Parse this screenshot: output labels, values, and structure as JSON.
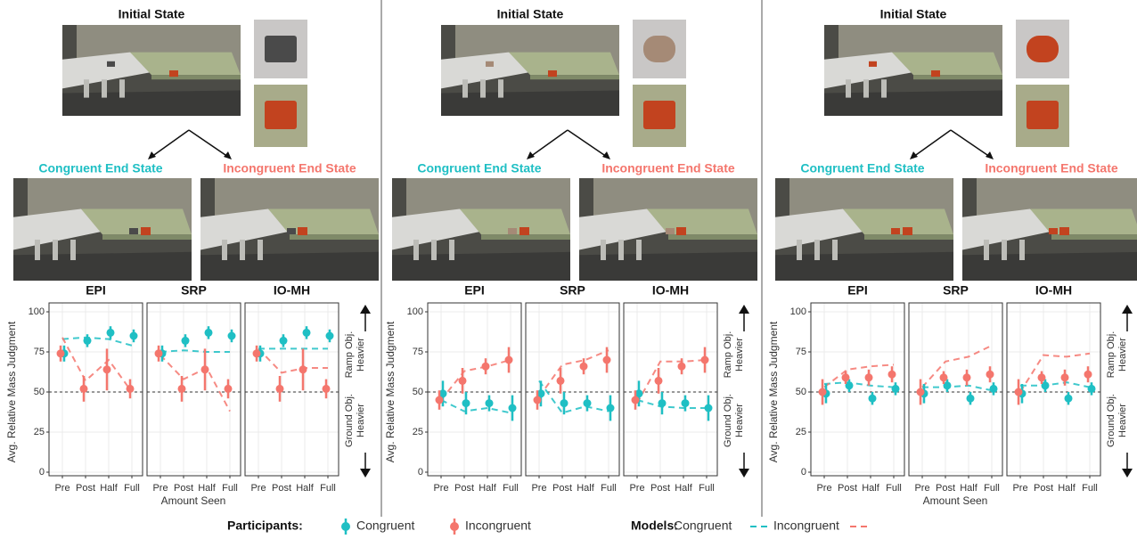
{
  "panels": [
    {
      "initial_label": "Initial State",
      "congruent_label": "Congruent End State",
      "incongruent_label": "Incongruent End State",
      "y_label": "Avg. Relative Mass Judgment",
      "x_label": "Amount Seen",
      "ramp_label": [
        "Ramp Obj.",
        "Heavier"
      ],
      "ground_label": [
        "Ground Obj.",
        "Heavier"
      ]
    },
    {
      "initial_label": "Initial State",
      "congruent_label": "Congruent End State",
      "incongruent_label": "Incongruent End State",
      "y_label": "Avg. Relative Mass Judgment",
      "ramp_label": [
        "Ramp Obj.",
        "Heavier"
      ],
      "ground_label": [
        "Ground Obj.",
        "Heavier"
      ]
    },
    {
      "initial_label": "Initial State",
      "congruent_label": "Congruent End State",
      "incongruent_label": "Incongruent End State",
      "y_label": "Avg. Relative Mass Judgment",
      "x_label": "Amount Seen",
      "ramp_label": [
        "Ramp Obj.",
        "Heavier"
      ],
      "ground_label": [
        "Ground Obj.",
        "Heavier"
      ]
    }
  ],
  "legend": {
    "participants": "Participants:",
    "models": "Models:"
  },
  "chart_data": [
    {
      "type": "line",
      "title": "EPI",
      "categories": [
        "Pre",
        "Post",
        "Half",
        "Full"
      ],
      "ylim": [
        0,
        100
      ],
      "yticks": [
        0,
        25,
        50,
        75,
        100
      ],
      "grid": true,
      "hline": 50,
      "series": [
        {
          "name": "Congruent",
          "kind": "participants",
          "color": "#1fbfc4",
          "values": [
            74,
            82,
            87,
            85
          ],
          "errors": [
            5,
            4,
            4,
            4
          ]
        },
        {
          "name": "Incongruent",
          "kind": "participants",
          "color": "#f4766d",
          "values": [
            74,
            52,
            64,
            52
          ],
          "errors": [
            5,
            8,
            13,
            6
          ]
        },
        {
          "name": "Congruent",
          "kind": "models",
          "color": "#1fbfc4",
          "values": [
            83,
            84,
            83,
            79
          ]
        },
        {
          "name": "Incongruent",
          "kind": "models",
          "color": "#f4766d",
          "values": [
            84,
            57,
            70,
            50
          ]
        }
      ]
    },
    {
      "type": "line",
      "title": "SRP",
      "categories": [
        "Pre",
        "Post",
        "Half",
        "Full"
      ],
      "ylim": [
        0,
        100
      ],
      "yticks": [
        0,
        25,
        50,
        75,
        100
      ],
      "grid": true,
      "hline": 50,
      "series": [
        {
          "name": "Congruent",
          "kind": "participants",
          "color": "#1fbfc4",
          "values": [
            74,
            82,
            87,
            85
          ],
          "errors": [
            5,
            4,
            4,
            4
          ]
        },
        {
          "name": "Incongruent",
          "kind": "participants",
          "color": "#f4766d",
          "values": [
            74,
            52,
            64,
            52
          ],
          "errors": [
            5,
            8,
            13,
            6
          ]
        },
        {
          "name": "Congruent",
          "kind": "models",
          "color": "#1fbfc4",
          "values": [
            75,
            76,
            75,
            75
          ]
        },
        {
          "name": "Incongruent",
          "kind": "models",
          "color": "#f4766d",
          "values": [
            73,
            58,
            65,
            38
          ]
        }
      ]
    },
    {
      "type": "line",
      "title": "IO-MH",
      "categories": [
        "Pre",
        "Post",
        "Half",
        "Full"
      ],
      "ylim": [
        0,
        100
      ],
      "yticks": [
        0,
        25,
        50,
        75,
        100
      ],
      "grid": true,
      "hline": 50,
      "series": [
        {
          "name": "Congruent",
          "kind": "participants",
          "color": "#1fbfc4",
          "values": [
            74,
            82,
            87,
            85
          ],
          "errors": [
            5,
            4,
            4,
            4
          ]
        },
        {
          "name": "Incongruent",
          "kind": "participants",
          "color": "#f4766d",
          "values": [
            74,
            52,
            64,
            52
          ],
          "errors": [
            5,
            8,
            13,
            6
          ]
        },
        {
          "name": "Congruent",
          "kind": "models",
          "color": "#1fbfc4",
          "values": [
            77,
            77,
            77,
            77
          ]
        },
        {
          "name": "Incongruent",
          "kind": "models",
          "color": "#f4766d",
          "values": [
            77,
            62,
            65,
            65
          ]
        }
      ]
    },
    {
      "type": "line",
      "title": "EPI",
      "categories": [
        "Pre",
        "Post",
        "Half",
        "Full"
      ],
      "ylim": [
        0,
        100
      ],
      "yticks": [
        0,
        25,
        50,
        75,
        100
      ],
      "grid": true,
      "hline": 50,
      "series": [
        {
          "name": "Congruent",
          "kind": "participants",
          "color": "#1fbfc4",
          "values": [
            49,
            43,
            43,
            40
          ],
          "errors": [
            8,
            7,
            5,
            8
          ]
        },
        {
          "name": "Incongruent",
          "kind": "participants",
          "color": "#f4766d",
          "values": [
            45,
            57,
            66,
            70
          ],
          "errors": [
            6,
            8,
            5,
            8
          ]
        },
        {
          "name": "Congruent",
          "kind": "models",
          "color": "#1fbfc4",
          "values": [
            45,
            38,
            40,
            37
          ]
        },
        {
          "name": "Incongruent",
          "kind": "models",
          "color": "#f4766d",
          "values": [
            45,
            63,
            66,
            70
          ]
        }
      ]
    },
    {
      "type": "line",
      "title": "SRP",
      "categories": [
        "Pre",
        "Post",
        "Half",
        "Full"
      ],
      "ylim": [
        0,
        100
      ],
      "yticks": [
        0,
        25,
        50,
        75,
        100
      ],
      "grid": true,
      "hline": 50,
      "series": [
        {
          "name": "Congruent",
          "kind": "participants",
          "color": "#1fbfc4",
          "values": [
            49,
            43,
            43,
            40
          ],
          "errors": [
            8,
            7,
            5,
            8
          ]
        },
        {
          "name": "Incongruent",
          "kind": "participants",
          "color": "#f4766d",
          "values": [
            45,
            57,
            66,
            70
          ],
          "errors": [
            6,
            8,
            5,
            8
          ]
        },
        {
          "name": "Congruent",
          "kind": "models",
          "color": "#1fbfc4",
          "values": [
            57,
            37,
            41,
            38
          ]
        },
        {
          "name": "Incongruent",
          "kind": "models",
          "color": "#f4766d",
          "values": [
            47,
            67,
            70,
            76
          ]
        }
      ]
    },
    {
      "type": "line",
      "title": "IO-MH",
      "categories": [
        "Pre",
        "Post",
        "Half",
        "Full"
      ],
      "ylim": [
        0,
        100
      ],
      "yticks": [
        0,
        25,
        50,
        75,
        100
      ],
      "grid": true,
      "hline": 50,
      "series": [
        {
          "name": "Congruent",
          "kind": "participants",
          "color": "#1fbfc4",
          "values": [
            49,
            43,
            43,
            40
          ],
          "errors": [
            8,
            7,
            5,
            8
          ]
        },
        {
          "name": "Incongruent",
          "kind": "participants",
          "color": "#f4766d",
          "values": [
            45,
            57,
            66,
            70
          ],
          "errors": [
            6,
            8,
            5,
            8
          ]
        },
        {
          "name": "Congruent",
          "kind": "models",
          "color": "#1fbfc4",
          "values": [
            45,
            41,
            40,
            40
          ]
        },
        {
          "name": "Incongruent",
          "kind": "models",
          "color": "#f4766d",
          "values": [
            43,
            69,
            69,
            70
          ]
        }
      ]
    },
    {
      "type": "line",
      "title": "EPI",
      "categories": [
        "Pre",
        "Post",
        "Half",
        "Full"
      ],
      "ylim": [
        0,
        100
      ],
      "yticks": [
        0,
        25,
        50,
        75,
        100
      ],
      "grid": true,
      "hline": 50,
      "series": [
        {
          "name": "Congruent",
          "kind": "participants",
          "color": "#1fbfc4",
          "values": [
            49,
            54,
            46,
            52
          ],
          "errors": [
            6,
            4,
            4,
            4
          ]
        },
        {
          "name": "Incongruent",
          "kind": "participants",
          "color": "#f4766d",
          "values": [
            50,
            59,
            59,
            61
          ],
          "errors": [
            8,
            4,
            5,
            5
          ]
        },
        {
          "name": "Congruent",
          "kind": "models",
          "color": "#1fbfc4",
          "values": [
            55,
            56,
            54,
            53
          ]
        },
        {
          "name": "Incongruent",
          "kind": "models",
          "color": "#f4766d",
          "values": [
            53,
            64,
            66,
            67
          ]
        }
      ]
    },
    {
      "type": "line",
      "title": "SRP",
      "categories": [
        "Pre",
        "Post",
        "Half",
        "Full"
      ],
      "ylim": [
        0,
        100
      ],
      "yticks": [
        0,
        25,
        50,
        75,
        100
      ],
      "grid": true,
      "hline": 50,
      "series": [
        {
          "name": "Congruent",
          "kind": "participants",
          "color": "#1fbfc4",
          "values": [
            49,
            54,
            46,
            52
          ],
          "errors": [
            6,
            4,
            4,
            4
          ]
        },
        {
          "name": "Incongruent",
          "kind": "participants",
          "color": "#f4766d",
          "values": [
            50,
            59,
            59,
            61
          ],
          "errors": [
            8,
            4,
            5,
            5
          ]
        },
        {
          "name": "Congruent",
          "kind": "models",
          "color": "#1fbfc4",
          "values": [
            53,
            53,
            54,
            51
          ]
        },
        {
          "name": "Incongruent",
          "kind": "models",
          "color": "#f4766d",
          "values": [
            53,
            69,
            72,
            79
          ]
        }
      ]
    },
    {
      "type": "line",
      "title": "IO-MH",
      "categories": [
        "Pre",
        "Post",
        "Half",
        "Full"
      ],
      "ylim": [
        0,
        100
      ],
      "yticks": [
        0,
        25,
        50,
        75,
        100
      ],
      "grid": true,
      "hline": 50,
      "series": [
        {
          "name": "Congruent",
          "kind": "participants",
          "color": "#1fbfc4",
          "values": [
            49,
            54,
            46,
            52
          ],
          "errors": [
            6,
            4,
            4,
            4
          ]
        },
        {
          "name": "Incongruent",
          "kind": "participants",
          "color": "#f4766d",
          "values": [
            50,
            59,
            59,
            61
          ],
          "errors": [
            8,
            4,
            5,
            5
          ]
        },
        {
          "name": "Congruent",
          "kind": "models",
          "color": "#1fbfc4",
          "values": [
            54,
            54,
            56,
            53
          ]
        },
        {
          "name": "Incongruent",
          "kind": "models",
          "color": "#f4766d",
          "values": [
            50,
            73,
            72,
            74
          ]
        }
      ]
    }
  ]
}
